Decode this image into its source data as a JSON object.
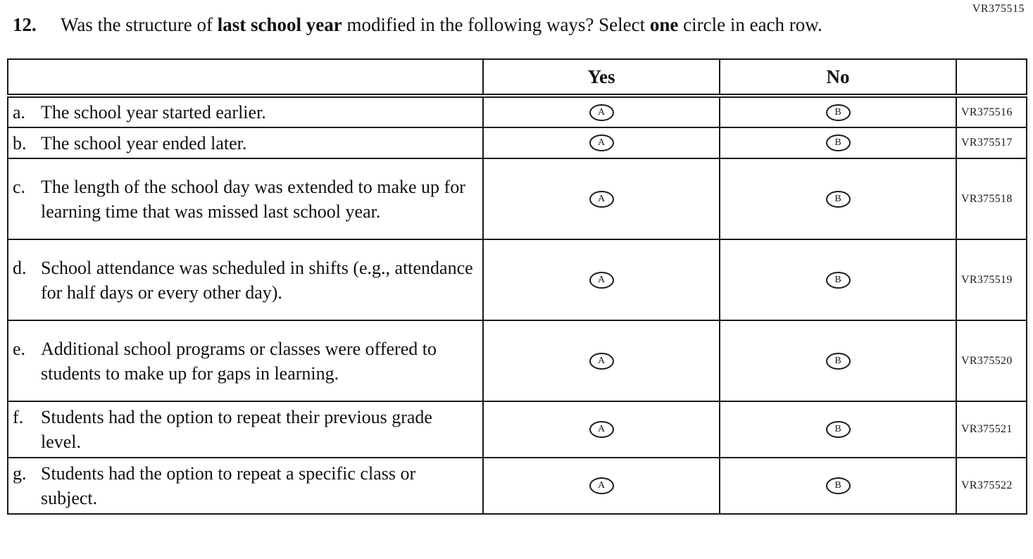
{
  "page": {
    "code": "VR375515"
  },
  "question": {
    "number": "12.",
    "seg1": "Was the structure of ",
    "bold1": "last school year",
    "seg2": " modified in the following ways? Select ",
    "bold2": "one",
    "seg3": " circle in each row."
  },
  "table": {
    "header": {
      "yes": "Yes",
      "no": "No"
    },
    "options": {
      "yes_letter": "A",
      "no_letter": "B"
    },
    "rows": [
      {
        "letter": "a.",
        "text": "The school year started earlier.",
        "code": "VR375516"
      },
      {
        "letter": "b.",
        "text": "The school year ended later.",
        "code": "VR375517"
      },
      {
        "letter": "c.",
        "text": "The length of the school day was extended to make up for learning time that was missed last school year.",
        "code": "VR375518"
      },
      {
        "letter": "d.",
        "text": "School attendance was scheduled in shifts (e.g., attendance for half days or every other day).",
        "code": "VR375519"
      },
      {
        "letter": "e.",
        "text": "Additional school programs or classes were offered to students to make up for gaps in learning.",
        "code": "VR375520"
      },
      {
        "letter": "f.",
        "text": "Students had the option to repeat their previous grade level.",
        "code": "VR375521"
      },
      {
        "letter": "g.",
        "text": "Students had the option to repeat a specific class or subject.",
        "code": "VR375522"
      }
    ]
  }
}
